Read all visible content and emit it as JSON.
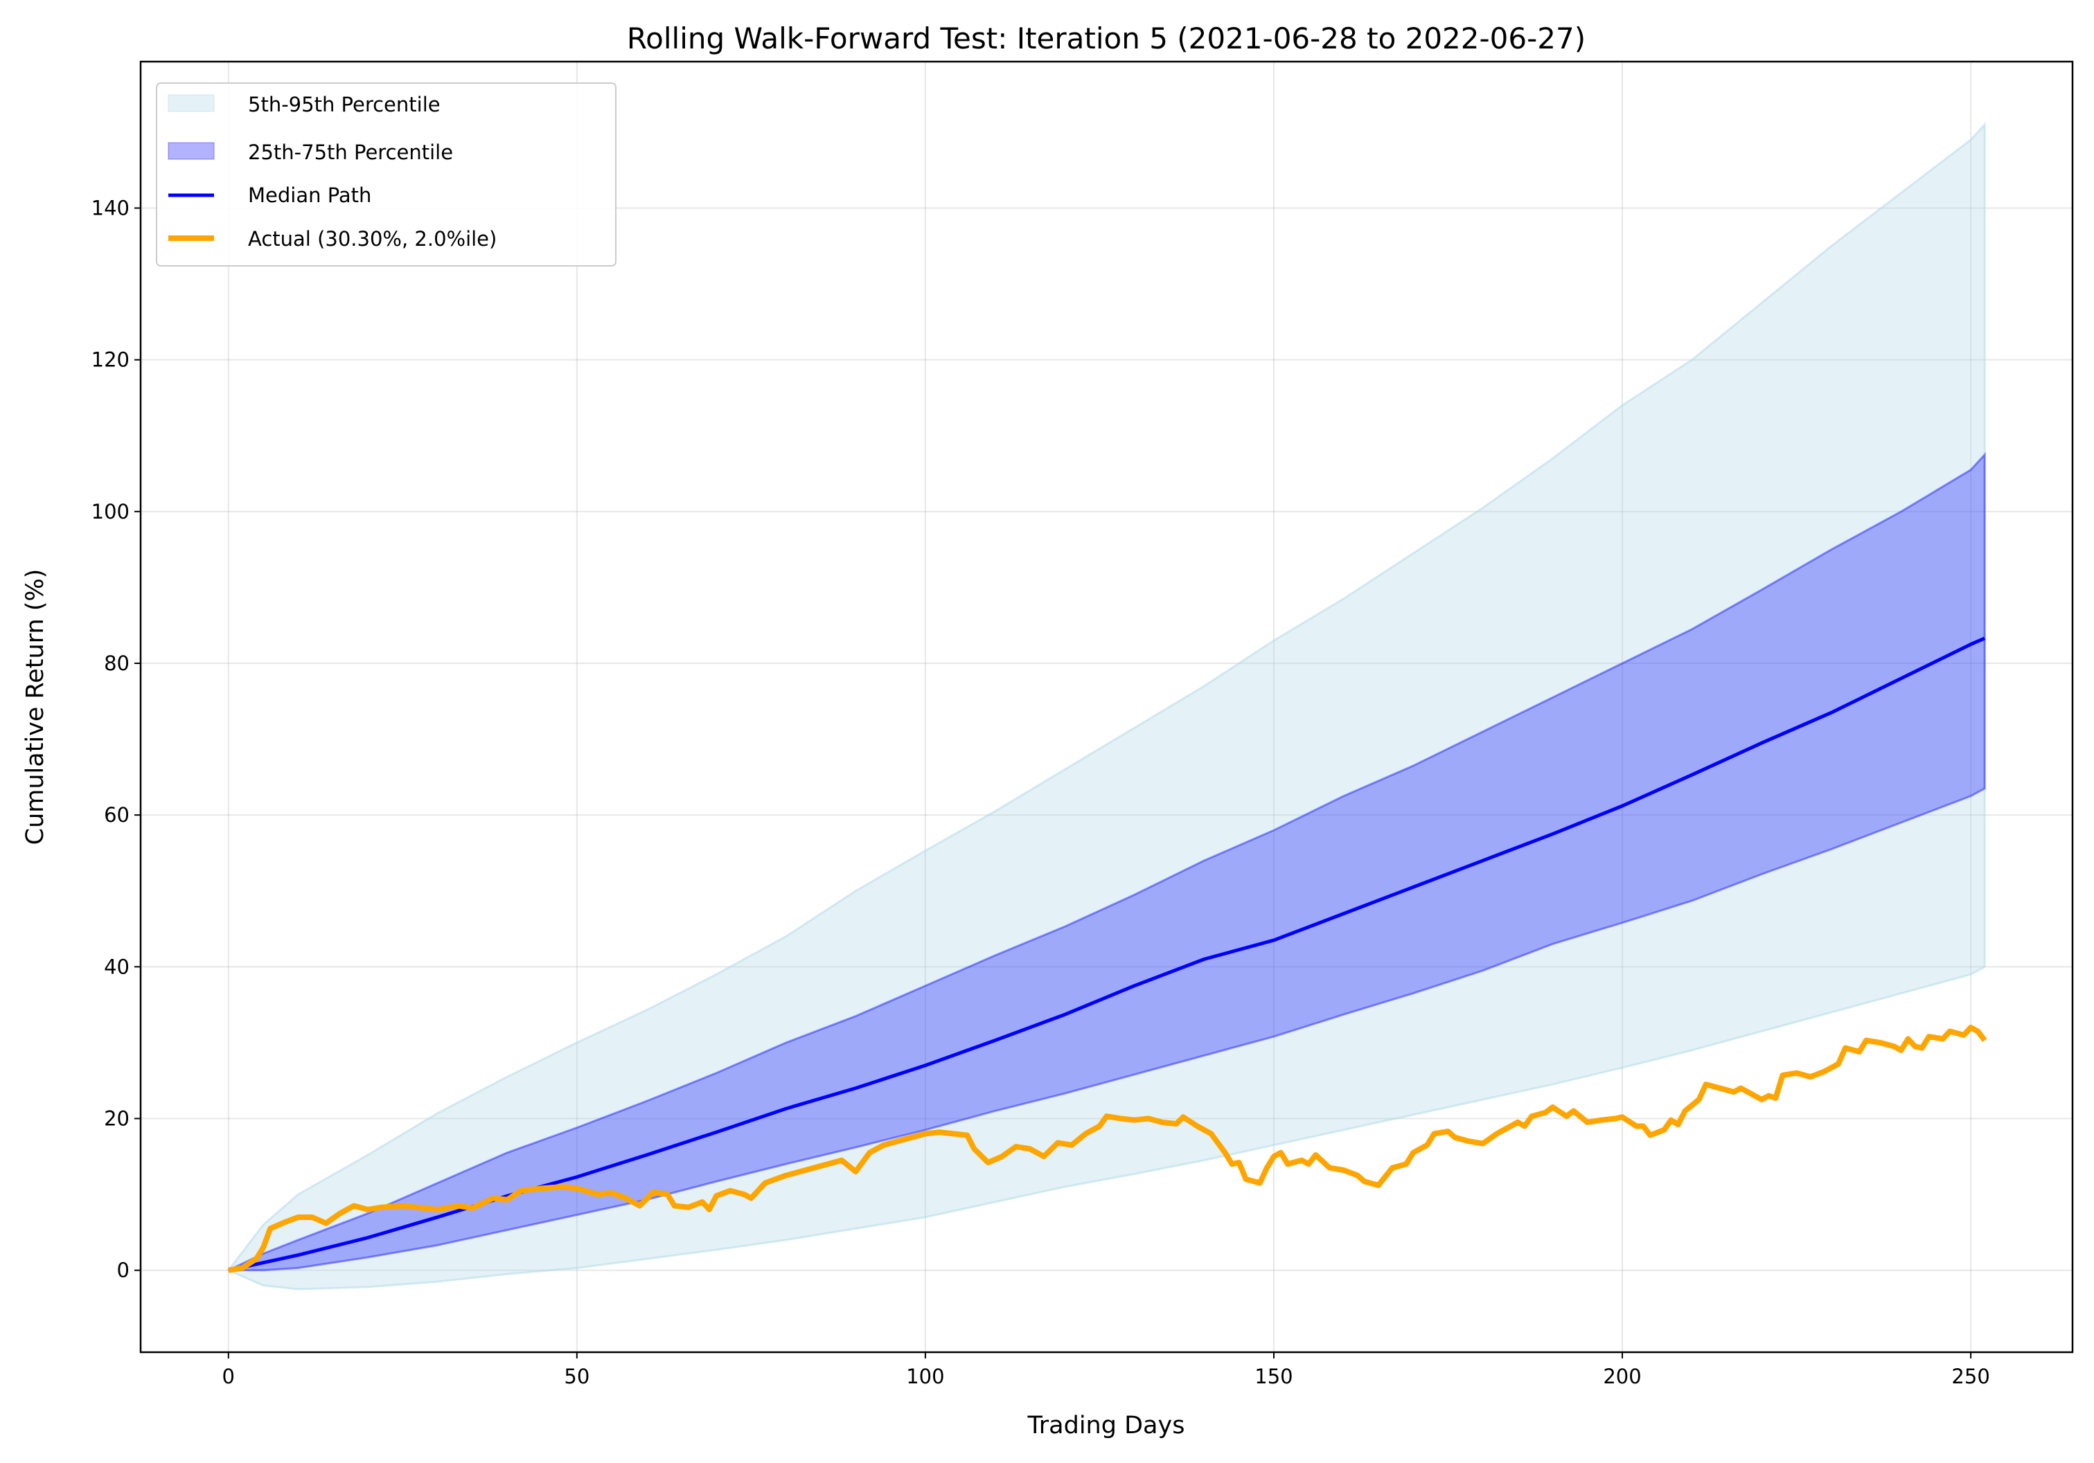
{
  "chart_data": {
    "type": "area",
    "title": "Rolling Walk-Forward Test: Iteration 5 (2021-06-28 to 2022-06-27)",
    "xlabel": "Trading Days",
    "ylabel": "Cumulative Return (%)",
    "xlim": [
      -12.6,
      264.6
    ],
    "ylim": [
      -10.8,
      159.3
    ],
    "xticks": [
      0,
      50,
      100,
      150,
      200,
      250
    ],
    "yticks": [
      0,
      20,
      40,
      60,
      80,
      100,
      120,
      140
    ],
    "grid": true,
    "legend_position": "top-left",
    "colors": {
      "band_outer": "#add8e6",
      "band_inner": "#0000ff",
      "median": "#0000ff",
      "actual": "#ffa500"
    },
    "bands": {
      "x": [
        0,
        5,
        10,
        20,
        30,
        40,
        50,
        60,
        70,
        80,
        90,
        100,
        110,
        120,
        130,
        140,
        150,
        160,
        170,
        180,
        190,
        200,
        210,
        220,
        230,
        240,
        250,
        252
      ],
      "p5": [
        0,
        -2,
        -2.5,
        -2.2,
        -1.5,
        -0.5,
        0.3,
        1.5,
        2.7,
        4,
        5.5,
        7,
        9,
        11,
        12.7,
        14.5,
        16.5,
        18.5,
        20.5,
        22.5,
        24.5,
        26.7,
        29,
        31.5,
        34,
        36.5,
        39,
        40
      ],
      "p25": [
        0,
        0,
        0.3,
        1.7,
        3.3,
        5.3,
        7.3,
        9.3,
        11.7,
        14,
        16.2,
        18.5,
        21,
        23.3,
        25.8,
        28.3,
        30.8,
        33.7,
        36.5,
        39.5,
        43,
        45.8,
        48.7,
        52.2,
        55.5,
        59,
        62.5,
        63.5
      ],
      "p75": [
        0,
        2.2,
        4,
        7.5,
        11.5,
        15.5,
        18.8,
        22.3,
        26,
        30,
        33.5,
        37.5,
        41.5,
        45.3,
        49.5,
        54,
        58,
        62.5,
        66.5,
        71,
        75.5,
        80,
        84.5,
        89.7,
        95,
        100,
        105.5,
        107.5
      ],
      "p95": [
        0,
        6,
        10,
        15.2,
        20.7,
        25.5,
        30,
        34.3,
        39,
        44,
        50,
        55.3,
        60.5,
        66,
        71.5,
        77,
        83,
        88.5,
        94.5,
        100.5,
        107,
        114,
        120,
        127.5,
        135,
        142,
        149,
        151
      ]
    },
    "series": [
      {
        "name": "5th-95th Percentile",
        "kind": "band"
      },
      {
        "name": "25th-75th Percentile",
        "kind": "band"
      },
      {
        "name": "Median Path",
        "x": [
          0,
          5,
          10,
          20,
          30,
          40,
          50,
          60,
          70,
          80,
          90,
          100,
          110,
          120,
          130,
          140,
          150,
          160,
          170,
          180,
          190,
          200,
          210,
          220,
          230,
          240,
          250,
          252
        ],
        "values": [
          0,
          1,
          2,
          4.3,
          7,
          9.8,
          12.3,
          15.2,
          18.2,
          21.3,
          24,
          27,
          30.3,
          33.7,
          37.5,
          41,
          43.5,
          47,
          50.5,
          54,
          57.5,
          61.2,
          65.3,
          69.5,
          73.5,
          78,
          82.5,
          83.3
        ]
      },
      {
        "name": "Actual (30.30%, 2.0%ile)",
        "x": [
          0,
          2,
          4,
          5,
          6,
          8,
          10,
          12,
          14,
          16,
          18,
          20,
          22,
          25,
          28,
          30,
          33,
          35,
          38,
          40,
          42,
          45,
          48,
          50,
          53,
          55,
          57,
          59,
          61,
          63,
          64,
          66,
          68,
          69,
          70,
          72,
          74,
          75,
          77,
          80,
          82,
          84,
          86,
          88,
          90,
          92,
          94,
          96,
          98,
          100,
          102,
          104,
          106,
          107,
          109,
          111,
          113,
          115,
          117,
          119,
          121,
          123,
          125,
          126,
          128,
          130,
          132,
          134,
          136,
          137,
          139,
          141,
          143,
          144,
          145,
          146,
          148,
          149,
          150,
          151,
          152,
          154,
          155,
          156,
          158,
          160,
          162,
          163,
          165,
          167,
          169,
          170,
          172,
          173,
          175,
          176,
          178,
          180,
          182,
          184,
          185,
          186,
          187,
          189,
          190,
          192,
          193,
          195,
          197,
          199,
          200,
          202,
          203,
          204,
          206,
          207,
          208,
          209,
          211,
          212,
          214,
          216,
          217,
          219,
          220,
          221,
          222,
          223,
          225,
          227,
          229,
          231,
          232,
          234,
          235,
          237,
          239,
          240,
          241,
          242,
          243,
          244,
          246,
          247,
          249,
          250,
          251,
          252
        ],
        "values": [
          0,
          0.3,
          1.5,
          3,
          5.5,
          6.3,
          7,
          7,
          6.2,
          7.5,
          8.5,
          8,
          8.3,
          8.5,
          8.2,
          8,
          8.5,
          8.2,
          9.5,
          9.3,
          10.5,
          10.8,
          11,
          10.8,
          10,
          10.2,
          9.5,
          8.5,
          10.3,
          10,
          8.5,
          8.3,
          9,
          8,
          9.8,
          10.5,
          10,
          9.5,
          11.5,
          12.5,
          13,
          13.5,
          14,
          14.5,
          13,
          15.5,
          16.5,
          17,
          17.5,
          18,
          18.2,
          18,
          17.8,
          16,
          14.2,
          15,
          16.3,
          16,
          15,
          16.8,
          16.5,
          18,
          19,
          20.3,
          20,
          19.8,
          20,
          19.5,
          19.3,
          20.2,
          19,
          18,
          15.5,
          14,
          14.2,
          12,
          11.5,
          13.5,
          15,
          15.5,
          14,
          14.5,
          14,
          15.2,
          13.5,
          13.2,
          12.5,
          11.7,
          11.2,
          13.5,
          14,
          15.5,
          16.5,
          18,
          18.3,
          17.5,
          17,
          16.7,
          18,
          19,
          19.5,
          19,
          20.3,
          20.8,
          21.5,
          20.3,
          21,
          19.5,
          19.8,
          20,
          20.2,
          19,
          19,
          17.8,
          18.5,
          19.8,
          19.2,
          21,
          22.5,
          24.5,
          24,
          23.5,
          24,
          23,
          22.5,
          23,
          22.7,
          25.7,
          26,
          25.5,
          26.2,
          27.2,
          29.3,
          28.8,
          30.3,
          30,
          29.5,
          29,
          30.5,
          29.5,
          29.3,
          30.8,
          30.5,
          31.5,
          31,
          32,
          31.5,
          30.3
        ]
      }
    ]
  }
}
